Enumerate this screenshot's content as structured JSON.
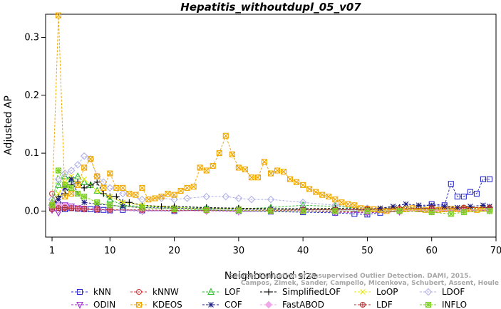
{
  "chart_data": {
    "type": "line",
    "title": "Hepatitis_withoutdupl_05_v07",
    "xlabel": "Neighborhood size",
    "ylabel": "Adjusted AP",
    "xlim": [
      0,
      70
    ],
    "ylim": [
      -0.045,
      0.34
    ],
    "x_ticks": [
      1,
      10,
      20,
      30,
      40,
      50,
      60,
      70
    ],
    "y_ticks": [
      "0.0",
      "0.1",
      "0.2",
      "0.3"
    ],
    "grid": false,
    "legend_position": "bottom",
    "watermark": [
      "Source: Evaluation of Unsupervised Outlier Detection. DAMI, 2015.",
      "Campos, Zimek, Sander, Campello, Micenkova, Schubert, Assent, Houle"
    ],
    "series": [
      {
        "name": "kNN",
        "color": "#2d2dcf",
        "marker": "square",
        "x": [
          1,
          2,
          3,
          4,
          5,
          6,
          7,
          8,
          9,
          10,
          12,
          15,
          20,
          25,
          30,
          35,
          40,
          45,
          48,
          50,
          52,
          55,
          58,
          60,
          62,
          63,
          64,
          65,
          66,
          67,
          68,
          69
        ],
        "y": [
          0.005,
          0.01,
          0.003,
          0.005,
          0.004,
          0.003,
          0.003,
          0.002,
          0.002,
          0.001,
          0.002,
          0.001,
          0.0,
          0.002,
          0.0,
          -0.001,
          -0.002,
          -0.003,
          -0.005,
          -0.006,
          -0.003,
          0.0,
          0.005,
          0.012,
          0.01,
          0.047,
          0.025,
          0.025,
          0.033,
          0.03,
          0.055,
          0.055
        ]
      },
      {
        "name": "kNNW",
        "color": "#e03030",
        "marker": "circle",
        "x": [
          1,
          2,
          3,
          4,
          5,
          6,
          8,
          10,
          15,
          20,
          25,
          30,
          35,
          40,
          45,
          50,
          55,
          60,
          65,
          69
        ],
        "y": [
          0.03,
          0.008,
          0.005,
          0.005,
          0.004,
          0.003,
          0.002,
          0.002,
          0.001,
          0.001,
          0.0,
          0.0,
          0.0,
          0.0,
          -0.001,
          -0.002,
          -0.001,
          0.0,
          0.001,
          0.002
        ]
      },
      {
        "name": "LOF",
        "color": "#2fbd2f",
        "marker": "triangle",
        "x": [
          1,
          2,
          3,
          4,
          5,
          6,
          7,
          8,
          10,
          12,
          15,
          20,
          25,
          30,
          35,
          40,
          45,
          50,
          55,
          60,
          65,
          69
        ],
        "y": [
          0.015,
          0.045,
          0.06,
          0.055,
          0.06,
          0.05,
          0.045,
          0.035,
          0.02,
          0.01,
          0.008,
          0.006,
          0.005,
          0.004,
          0.006,
          0.01,
          0.008,
          0.004,
          0.003,
          0.002,
          0.003,
          0.004
        ]
      },
      {
        "name": "SimplifiedLOF",
        "color": "#000000",
        "marker": "plus",
        "x": [
          1,
          2,
          3,
          4,
          5,
          6,
          7,
          8,
          9,
          10,
          11,
          12,
          13,
          15,
          18,
          20,
          25,
          30,
          35,
          40,
          45,
          50,
          55,
          60,
          65,
          69
        ],
        "y": [
          0.01,
          0.025,
          0.03,
          0.045,
          0.05,
          0.04,
          0.045,
          0.05,
          0.03,
          0.025,
          0.025,
          0.015,
          0.015,
          0.01,
          0.008,
          0.008,
          0.006,
          0.005,
          0.004,
          0.004,
          0.005,
          0.004,
          0.006,
          0.004,
          0.005,
          0.006
        ]
      },
      {
        "name": "LoOP",
        "color": "#e8e800",
        "marker": "x",
        "x": [
          1,
          2,
          3,
          4,
          5,
          6,
          8,
          10,
          12,
          15,
          20,
          25,
          30,
          35,
          40,
          45,
          50,
          55,
          60,
          65,
          69
        ],
        "y": [
          0.012,
          0.03,
          0.05,
          0.06,
          0.045,
          0.055,
          0.035,
          0.025,
          0.015,
          0.01,
          0.006,
          0.004,
          0.004,
          0.003,
          0.003,
          0.003,
          0.002,
          0.002,
          0.001,
          0.002,
          0.002
        ]
      },
      {
        "name": "LDOF",
        "color": "#b0b0e8",
        "marker": "diamond",
        "x": [
          1,
          2,
          3,
          4,
          5,
          6,
          7,
          8,
          9,
          10,
          12,
          15,
          18,
          20,
          22,
          25,
          28,
          30,
          32,
          35,
          40,
          45,
          50,
          55,
          60,
          65,
          69
        ],
        "y": [
          0.02,
          0.055,
          0.065,
          0.07,
          0.08,
          0.095,
          0.09,
          0.06,
          0.05,
          0.04,
          0.03,
          0.02,
          0.022,
          0.02,
          0.022,
          0.025,
          0.025,
          0.022,
          0.02,
          0.02,
          0.015,
          0.01,
          0.005,
          0.003,
          0.002,
          0.002,
          0.002
        ]
      },
      {
        "name": "ODIN",
        "color": "#9e2ad0",
        "marker": "triangle-down",
        "x": [
          1,
          2,
          3,
          4,
          5,
          6,
          8,
          10,
          15,
          20,
          25,
          30,
          35,
          40,
          45,
          50,
          55,
          60,
          65,
          69
        ],
        "y": [
          0.002,
          -0.003,
          0.01,
          0.008,
          0.005,
          0.004,
          0.003,
          0.002,
          0.0,
          0.001,
          0.0,
          -0.001,
          0.0,
          0.0,
          -0.002,
          -0.003,
          -0.001,
          0.0,
          0.001,
          0.001
        ]
      },
      {
        "name": "KDEOS",
        "color": "#f0a800",
        "marker": "boxed-x",
        "x": [
          1,
          2,
          3,
          4,
          5,
          6,
          7,
          8,
          9,
          10,
          11,
          12,
          13,
          14,
          15,
          16,
          17,
          18,
          19,
          20,
          21,
          22,
          23,
          24,
          25,
          26,
          27,
          28,
          29,
          30,
          31,
          32,
          33,
          34,
          35,
          36,
          37,
          38,
          39,
          40,
          41,
          42,
          43,
          44,
          45,
          46,
          47,
          48,
          49,
          50,
          51,
          52,
          53,
          54,
          55,
          56,
          57,
          58,
          59,
          60,
          61,
          62,
          63,
          64,
          65,
          66,
          67,
          68,
          69
        ],
        "y": [
          0.01,
          0.338,
          0.025,
          0.03,
          0.045,
          0.075,
          0.09,
          0.06,
          0.04,
          0.065,
          0.04,
          0.04,
          0.03,
          0.028,
          0.04,
          0.02,
          0.022,
          0.025,
          0.03,
          0.028,
          0.035,
          0.04,
          0.042,
          0.075,
          0.07,
          0.078,
          0.1,
          0.13,
          0.098,
          0.075,
          0.072,
          0.058,
          0.058,
          0.085,
          0.065,
          0.07,
          0.068,
          0.055,
          0.05,
          0.045,
          0.038,
          0.033,
          0.028,
          0.025,
          0.02,
          0.015,
          0.012,
          0.01,
          0.005,
          0.004,
          0.003,
          0.002,
          0.0,
          0.004,
          0.002,
          0.003,
          0.005,
          0.003,
          0.002,
          0.004,
          0.002,
          0.003,
          0.004,
          0.003,
          0.004,
          0.003,
          0.002,
          0.004,
          0.003
        ]
      },
      {
        "name": "COF",
        "color": "#1a1a80",
        "marker": "asterisk",
        "x": [
          1,
          2,
          3,
          4,
          5,
          6,
          8,
          10,
          12,
          15,
          20,
          25,
          30,
          35,
          40,
          45,
          50,
          52,
          54,
          56,
          58,
          60,
          62,
          64,
          66,
          68,
          69
        ],
        "y": [
          0.01,
          0.02,
          0.04,
          0.055,
          0.03,
          0.015,
          0.012,
          0.01,
          0.008,
          0.006,
          0.005,
          0.004,
          0.003,
          0.003,
          0.003,
          0.002,
          0.002,
          0.005,
          0.008,
          0.012,
          0.01,
          0.01,
          0.008,
          0.006,
          0.008,
          0.01,
          0.008
        ]
      },
      {
        "name": "FastABOD",
        "color": "#f0a8e8",
        "marker": "diamond-filled",
        "x": [
          1,
          2,
          3,
          4,
          5,
          6,
          8,
          10,
          15,
          20,
          25,
          30,
          35,
          40,
          45,
          50,
          55,
          60,
          65,
          69
        ],
        "y": [
          0.005,
          0.01,
          0.008,
          0.006,
          0.005,
          0.004,
          0.003,
          0.002,
          0.001,
          0.001,
          0.0,
          0.0,
          0.0,
          0.001,
          0.0,
          0.0,
          0.001,
          0.001,
          0.002,
          0.002
        ]
      },
      {
        "name": "LDF",
        "color": "#b03030",
        "marker": "circle-plus",
        "x": [
          1,
          2,
          3,
          4,
          5,
          6,
          8,
          10,
          15,
          20,
          25,
          30,
          35,
          40,
          45,
          50,
          55,
          60,
          65,
          69
        ],
        "y": [
          0.003,
          0.005,
          0.006,
          0.005,
          0.004,
          0.004,
          0.003,
          0.002,
          0.002,
          0.001,
          0.001,
          0.001,
          0.001,
          0.002,
          0.002,
          0.003,
          0.004,
          0.005,
          0.006,
          0.006
        ]
      },
      {
        "name": "INFLO",
        "color": "#7cd020",
        "marker": "boxed-star",
        "x": [
          1,
          2,
          3,
          4,
          5,
          6,
          8,
          10,
          15,
          20,
          25,
          30,
          35,
          40,
          45,
          50,
          55,
          60,
          63,
          65,
          69
        ],
        "y": [
          0.01,
          0.07,
          0.045,
          0.04,
          0.03,
          0.025,
          0.015,
          0.01,
          0.006,
          0.003,
          0.002,
          0.001,
          0.0,
          0.0,
          0.0,
          0.0,
          0.0,
          -0.002,
          -0.005,
          -0.002,
          0.0
        ]
      }
    ]
  }
}
